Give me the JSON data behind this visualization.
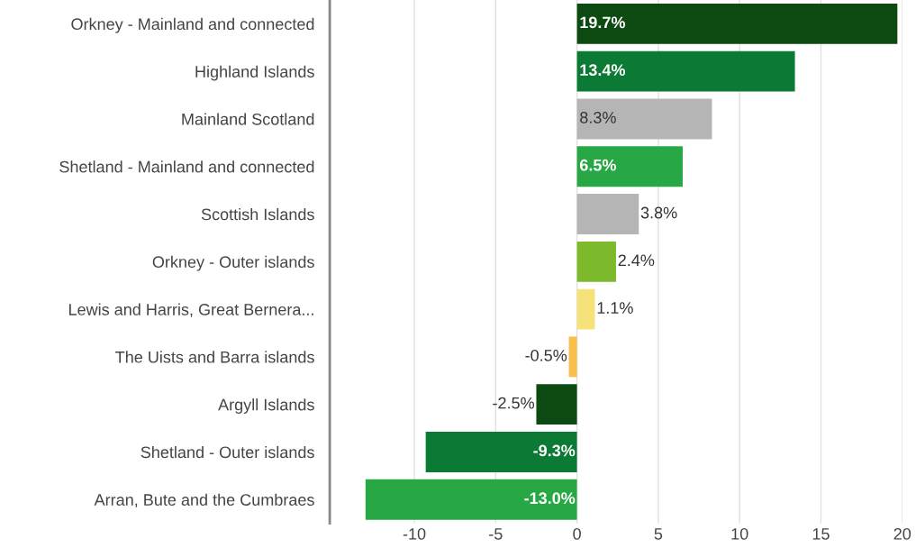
{
  "chart_data": {
    "type": "bar",
    "orientation": "horizontal",
    "categories": [
      "Orkney - Mainland and connected",
      "Highland Islands",
      "Mainland Scotland",
      "Shetland - Mainland and connected",
      "Scottish Islands",
      "Orkney - Outer islands",
      "Lewis and Harris, Great Bernera...",
      "The Uists and Barra islands",
      "Argyll Islands",
      "Shetland - Outer islands",
      "Arran, Bute and the Cumbraes"
    ],
    "values": [
      19.7,
      13.4,
      8.3,
      6.5,
      3.8,
      2.4,
      1.1,
      -0.5,
      -2.5,
      -9.3,
      -13.0
    ],
    "value_labels": [
      "19.7%",
      "13.4%",
      "8.3%",
      "6.5%",
      "3.8%",
      "2.4%",
      "1.1%",
      "-0.5%",
      "-2.5%",
      "-9.3%",
      "-13.0%"
    ],
    "colors": [
      "#0d4a12",
      "#0b7a35",
      "#b5b5b5",
      "#28a745",
      "#b5b5b5",
      "#7cba2c",
      "#f5e27a",
      "#f9c04c",
      "#0d4a12",
      "#0b7a35",
      "#28a745"
    ],
    "xlim": [
      -15.2,
      20
    ],
    "xticks": [
      -10,
      -5,
      0,
      5,
      10,
      15,
      20
    ],
    "grid": "x",
    "legend": false
  }
}
